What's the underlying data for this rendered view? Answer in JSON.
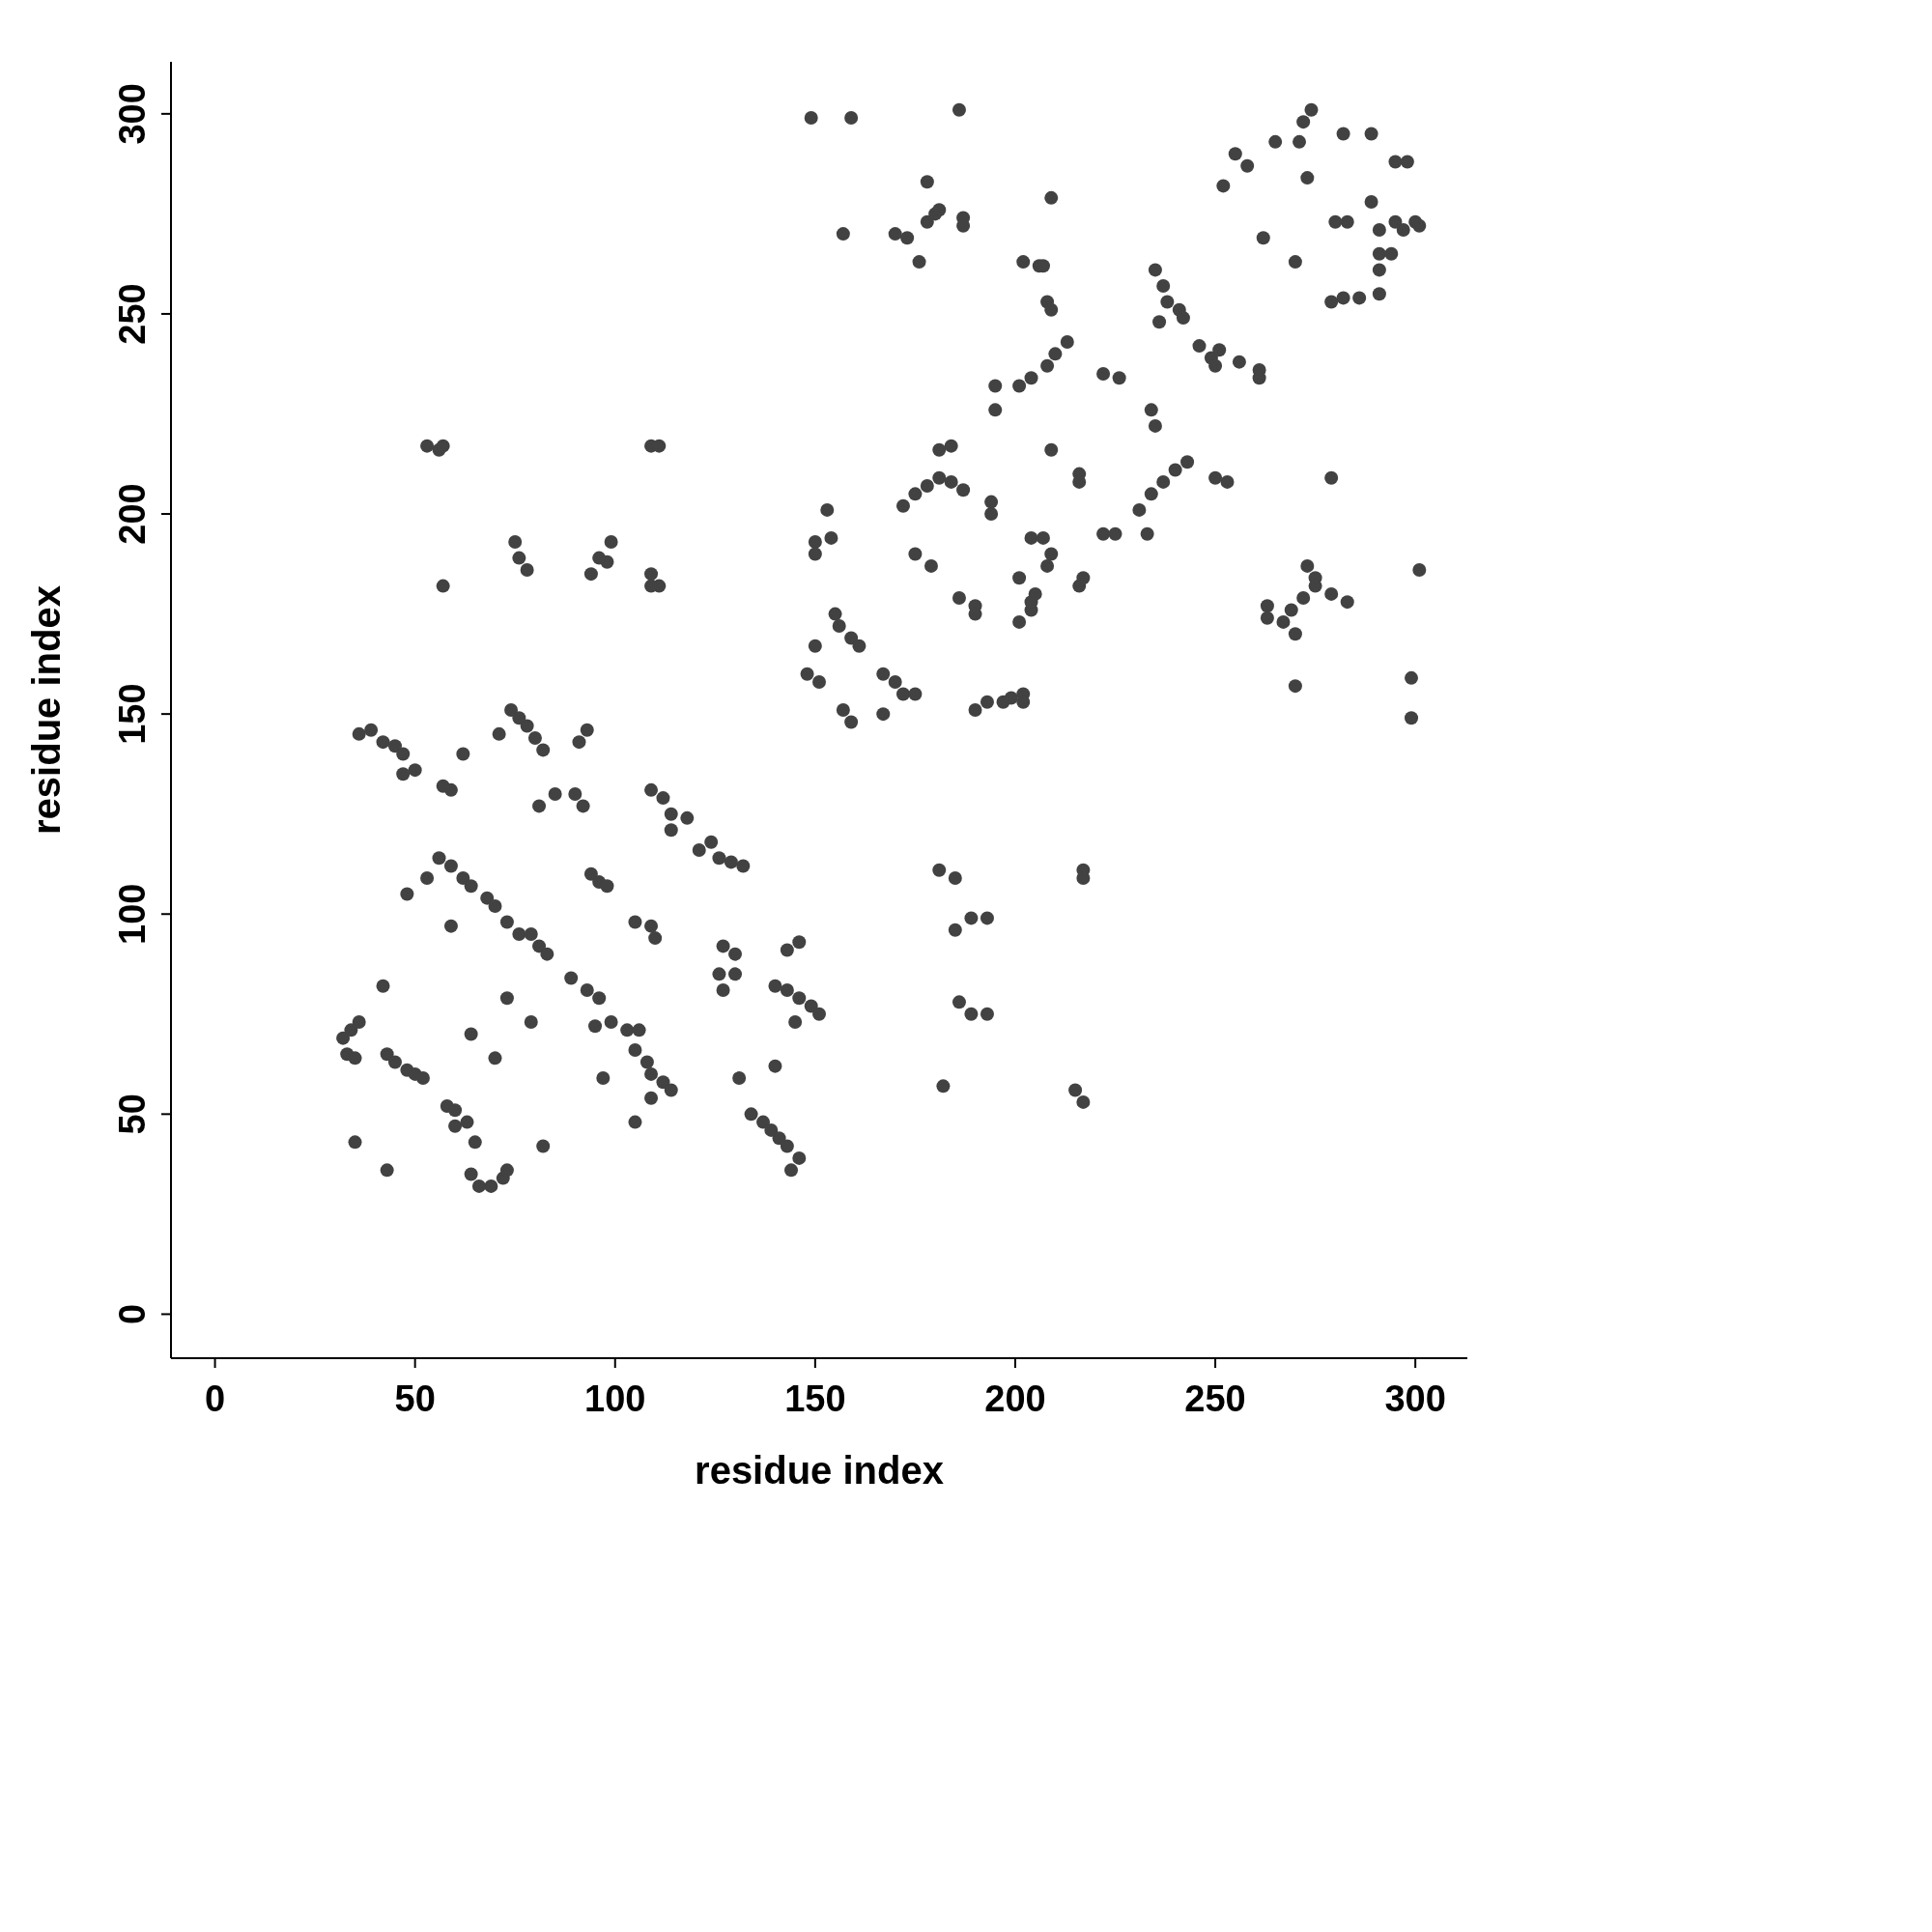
{
  "chart_data": {
    "type": "scatter",
    "xlabel": "residue index",
    "ylabel": "residue index",
    "xlim": [
      -11,
      313
    ],
    "ylim": [
      -11,
      313
    ],
    "xticks": [
      0,
      50,
      100,
      150,
      200,
      250,
      300
    ],
    "yticks": [
      0,
      50,
      100,
      150,
      200,
      250,
      300
    ],
    "marker": "circle",
    "series": [
      {
        "color": "#424242",
        "x": [
          149,
          159,
          186,
          157,
          170,
          173,
          176,
          178,
          180,
          178,
          181,
          187,
          187,
          209,
          252,
          255,
          258,
          265,
          272,
          274,
          271,
          273,
          282,
          289,
          295,
          298,
          289,
          291,
          295,
          297,
          300,
          301,
          291,
          294,
          291,
          291,
          286,
          282,
          279,
          283,
          280,
          262,
          270,
          279,
          202,
          206,
          207,
          208,
          209,
          235,
          237,
          236,
          238,
          241,
          242,
          201,
          204,
          208,
          210,
          213,
          195,
          195,
          222,
          226,
          234,
          235,
          246,
          249,
          251,
          250,
          256,
          261,
          261,
          250,
          253,
          231,
          234,
          237,
          240,
          243,
          222,
          225,
          233,
          209,
          216,
          216,
          181,
          184,
          172,
          175,
          178,
          181,
          184,
          187,
          194,
          194,
          153,
          154,
          150,
          150,
          175,
          179,
          201,
          204,
          204,
          205,
          201,
          204,
          207,
          209,
          208,
          216,
          217,
          186,
          190,
          190,
          263,
          263,
          267,
          269,
          272,
          273,
          275,
          275,
          270,
          279,
          283,
          301,
          299,
          299,
          270,
          155,
          156,
          159,
          161,
          150,
          148,
          151,
          157,
          159,
          167,
          170,
          172,
          175,
          167,
          190,
          193,
          197,
          199,
          202,
          202,
          181,
          185,
          185,
          189,
          193,
          217,
          217,
          186,
          189,
          193,
          182,
          215,
          217,
          53,
          56,
          57,
          57,
          109,
          111,
          75,
          76,
          78,
          94,
          96,
          99,
          98,
          109,
          111,
          109,
          36,
          39,
          42,
          45,
          47,
          50,
          47,
          62,
          57,
          59,
          74,
          71,
          76,
          78,
          80,
          82,
          93,
          91,
          81,
          85,
          90,
          92,
          109,
          112,
          114,
          118,
          114,
          121,
          124,
          126,
          129,
          132,
          94,
          96,
          98,
          105,
          109,
          110,
          56,
          59,
          62,
          64,
          68,
          70,
          73,
          76,
          79,
          81,
          83,
          48,
          59,
          53,
          89,
          93,
          96,
          95,
          99,
          103,
          105,
          106,
          108,
          109,
          112,
          114,
          109,
          105,
          127,
          130,
          126,
          130,
          127,
          140,
          143,
          146,
          149,
          151,
          145,
          143,
          146,
          42,
          73,
          79,
          64,
          32,
          34,
          36,
          33,
          35,
          43,
          45,
          48,
          50,
          52,
          70,
          97,
          131,
          140,
          58,
          60,
          60,
          63,
          65,
          35,
          43,
          82,
          64,
          66,
          69,
          72,
          73,
          134,
          137,
          139,
          141,
          143,
          146,
          144
        ],
        "values": [
          299,
          299,
          301,
          270,
          270,
          269,
          263,
          273,
          275,
          283,
          276,
          274,
          272,
          279,
          282,
          290,
          287,
          293,
          298,
          301,
          293,
          284,
          295,
          295,
          288,
          288,
          278,
          271,
          273,
          271,
          273,
          272,
          265,
          265,
          261,
          255,
          254,
          254,
          253,
          273,
          273,
          269,
          263,
          209,
          263,
          262,
          262,
          253,
          251,
          261,
          257,
          248,
          253,
          251,
          249,
          232,
          234,
          237,
          240,
          243,
          232,
          226,
          235,
          234,
          226,
          222,
          242,
          239,
          241,
          237,
          238,
          236,
          234,
          209,
          208,
          201,
          205,
          208,
          211,
          213,
          195,
          195,
          195,
          216,
          210,
          208,
          216,
          217,
          202,
          205,
          207,
          209,
          208,
          206,
          203,
          200,
          201,
          194,
          193,
          190,
          190,
          187,
          173,
          176,
          178,
          180,
          184,
          194,
          194,
          190,
          187,
          182,
          184,
          179,
          177,
          175,
          177,
          174,
          173,
          176,
          179,
          187,
          184,
          182,
          170,
          180,
          178,
          186,
          159,
          149,
          157,
          175,
          172,
          169,
          167,
          167,
          160,
          158,
          151,
          148,
          160,
          158,
          155,
          155,
          150,
          151,
          153,
          153,
          154,
          155,
          153,
          111,
          109,
          96,
          99,
          99,
          111,
          109,
          78,
          75,
          75,
          57,
          56,
          53,
          217,
          216,
          217,
          182,
          217,
          217,
          193,
          189,
          186,
          185,
          189,
          193,
          188,
          185,
          182,
          182,
          145,
          146,
          143,
          142,
          140,
          136,
          135,
          140,
          132,
          131,
          151,
          145,
          149,
          147,
          144,
          141,
          146,
          143,
          127,
          130,
          130,
          127,
          131,
          129,
          125,
          124,
          121,
          116,
          118,
          114,
          113,
          112,
          110,
          108,
          107,
          98,
          97,
          94,
          114,
          112,
          109,
          107,
          104,
          102,
          98,
          95,
          95,
          92,
          90,
          105,
          97,
          109,
          84,
          81,
          79,
          72,
          73,
          71,
          66,
          71,
          63,
          60,
          58,
          56,
          54,
          48,
          92,
          90,
          85,
          85,
          81,
          82,
          81,
          79,
          77,
          75,
          73,
          91,
          93,
          82,
          79,
          73,
          70,
          69,
          71,
          73,
          65,
          64,
          65,
          63,
          61,
          60,
          59,
          64,
          59,
          59,
          62,
          52,
          51,
          47,
          48,
          43,
          43,
          36,
          42,
          35,
          32,
          32,
          34,
          36,
          50,
          48,
          46,
          44,
          42,
          39,
          36
        ]
      }
    ]
  }
}
